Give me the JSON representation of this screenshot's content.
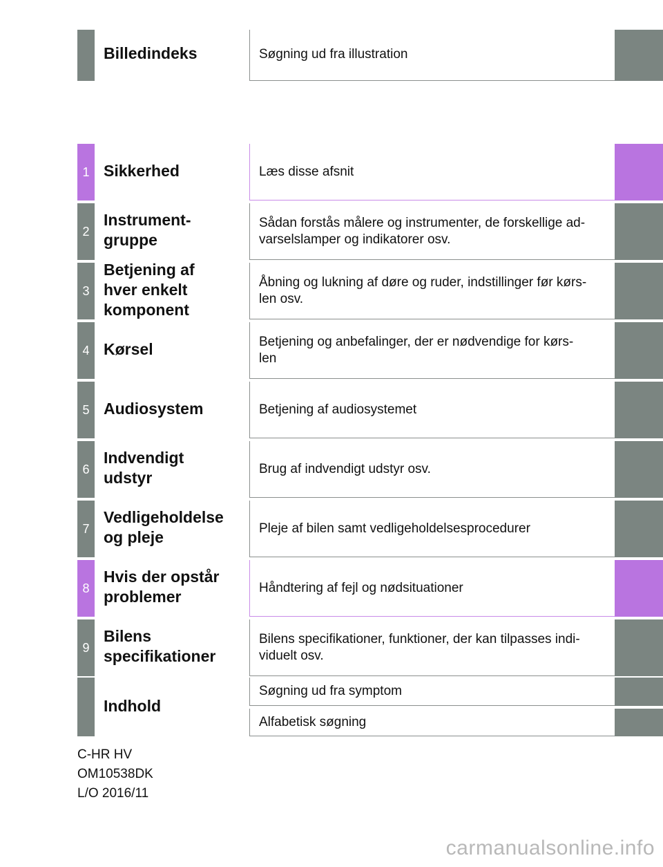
{
  "header_row": {
    "title": "Billedindeks",
    "description": "Søgning ud fra illustration"
  },
  "sections": [
    {
      "number": "1",
      "title": "Sikkerhed",
      "description": "Læs disse afsnit",
      "color": "#b974e0"
    },
    {
      "number": "2",
      "title": "Instrument-\ngruppe",
      "description": "Sådan forstås målere og instrumenter, de forskellige ad-\nvarselslamper og indikatorer osv.",
      "color": "#7b8581"
    },
    {
      "number": "3",
      "title": "Betjening af\nhver enkelt\nkomponent",
      "description": "Åbning og lukning af døre og ruder, indstillinger før kørs-\nlen osv.",
      "color": "#7b8581"
    },
    {
      "number": "4",
      "title": "Kørsel",
      "description": "Betjening og anbefalinger, der er nødvendige for kørs-\nlen",
      "color": "#7b8581"
    },
    {
      "number": "5",
      "title": "Audiosystem",
      "description": "Betjening af audiosystemet",
      "color": "#7b8581"
    },
    {
      "number": "6",
      "title": "Indvendigt\nudstyr",
      "description": "Brug af indvendigt udstyr osv.",
      "color": "#7b8581"
    },
    {
      "number": "7",
      "title": "Vedligeholdelse\nog pleje",
      "description": "Pleje af bilen samt vedligeholdelsesprocedurer",
      "color": "#7b8581"
    },
    {
      "number": "8",
      "title": "Hvis der opstår\nproblemer",
      "description": "Håndtering af fejl og nødsituationer",
      "color": "#b974e0"
    },
    {
      "number": "9",
      "title": "Bilens\nspecifikationer",
      "description": "Bilens specifikationer, funktioner, der kan tilpasses indi-\nviduelt osv.",
      "color": "#7b8581"
    }
  ],
  "index_row": {
    "title": "Indhold",
    "items": [
      "Søgning ud fra symptom",
      "Alfabetisk søgning"
    ]
  },
  "footer": {
    "model": "C-HR HV",
    "code": "OM10538DK",
    "lo": "L/O 2016/11"
  },
  "watermark": "carmanualsonline.info"
}
